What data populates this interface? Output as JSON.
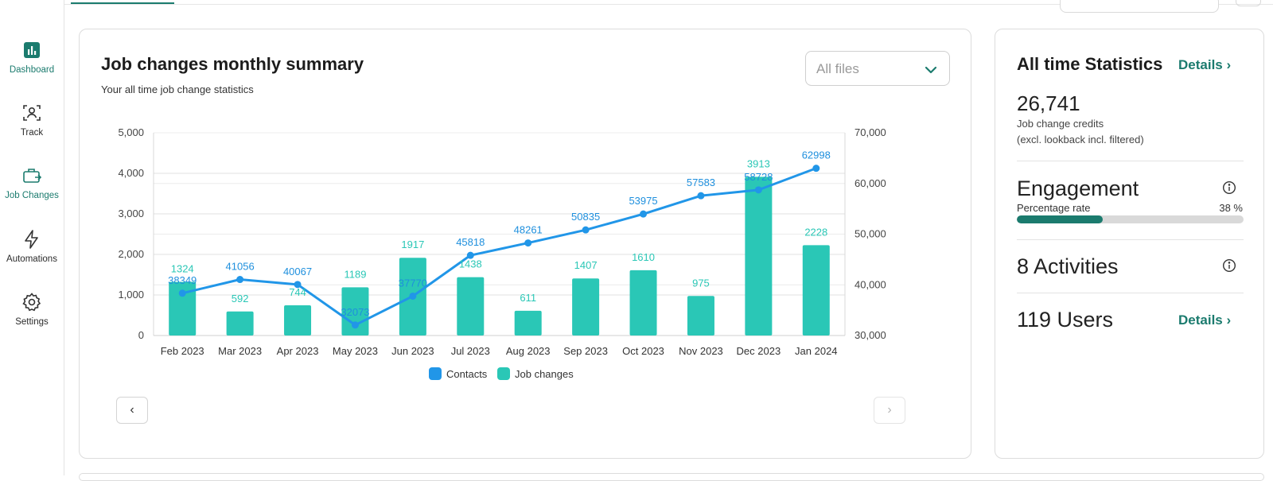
{
  "sidebar": {
    "items": [
      {
        "label": "Dashboard",
        "icon": "chart-icon",
        "active": true
      },
      {
        "label": "Track",
        "icon": "person-scan-icon"
      },
      {
        "label": "Job Changes",
        "icon": "briefcase-icon"
      },
      {
        "label": "Automations",
        "icon": "lightning-icon"
      },
      {
        "label": "Settings",
        "icon": "gear-icon"
      }
    ]
  },
  "main": {
    "title": "Job changes monthly summary",
    "subtitle": "Your all time job change statistics",
    "file_select": {
      "value": "All files"
    }
  },
  "chart_data": {
    "type": "bar",
    "categories": [
      "Feb 2023",
      "Mar 2023",
      "Apr 2023",
      "May 2023",
      "Jun 2023",
      "Jul 2023",
      "Aug 2023",
      "Sep 2023",
      "Oct 2023",
      "Nov 2023",
      "Dec 2023",
      "Jan 2024"
    ],
    "series": [
      {
        "name": "Job changes",
        "type": "bar",
        "axis": "left",
        "color": "#2ac7b6",
        "values": [
          1324,
          592,
          744,
          1189,
          1917,
          1438,
          611,
          1407,
          1610,
          975,
          3913,
          2228
        ]
      },
      {
        "name": "Contacts",
        "type": "line",
        "axis": "right",
        "color": "#2196e8",
        "values": [
          38349,
          41056,
          40067,
          32073,
          37770,
          45818,
          48261,
          50835,
          53975,
          57583,
          58728,
          62998
        ]
      }
    ],
    "y_left": {
      "ylim": [
        0,
        5000
      ],
      "ticks": [
        "0",
        "1,000",
        "2,000",
        "3,000",
        "4,000",
        "5,000"
      ]
    },
    "y_right": {
      "ylim": [
        30000,
        70000
      ],
      "ticks": [
        "30,000",
        "40,000",
        "50,000",
        "60,000",
        "70,000"
      ]
    },
    "grid": true,
    "legend": {
      "position": "bottom",
      "entries": [
        "Contacts",
        "Job changes"
      ]
    }
  },
  "pager": {
    "prev": "‹",
    "next": "›"
  },
  "stats": {
    "title": "All time Statistics",
    "details_label": "Details ›",
    "credits_value": "26,741",
    "credits_label": "Job change credits",
    "credits_note": "(excl. lookback incl. filtered)",
    "engagement_title": "Engagement",
    "engagement_rate_label": "Percentage rate",
    "engagement_rate_value": "38 %",
    "engagement_rate": 0.38,
    "activities": "8 Activities",
    "users": "119 Users",
    "users_details_label": "Details ›"
  },
  "colors": {
    "accent": "#1b7b6e",
    "bar": "#2ac7b6",
    "line": "#2196e8"
  }
}
